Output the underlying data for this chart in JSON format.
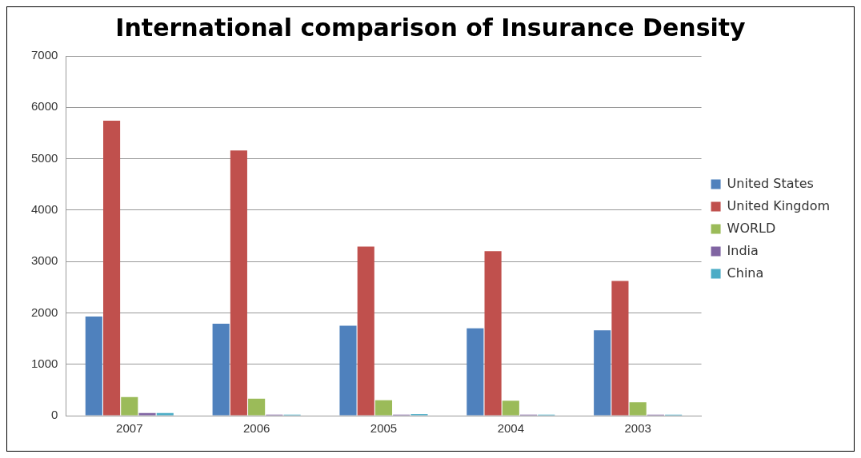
{
  "chart_data": {
    "type": "bar",
    "title": "International comparison of Insurance Density",
    "categories": [
      "2007",
      "2006",
      "2005",
      "2004",
      "2003"
    ],
    "series": [
      {
        "name": "United States",
        "color": "#4f81bd",
        "values": [
          1930,
          1790,
          1750,
          1700,
          1660
        ]
      },
      {
        "name": "United Kingdom",
        "color": "#c0504d",
        "values": [
          5740,
          5160,
          3290,
          3200,
          2620
        ]
      },
      {
        "name": "WORLD",
        "color": "#9bbb59",
        "values": [
          360,
          330,
          300,
          290,
          260
        ]
      },
      {
        "name": "India",
        "color": "#8064a2",
        "values": [
          50,
          20,
          20,
          20,
          20
        ]
      },
      {
        "name": "China",
        "color": "#4bacc6",
        "values": [
          50,
          20,
          30,
          20,
          20
        ]
      }
    ],
    "ylim": [
      0,
      7000
    ],
    "yticks": [
      0,
      1000,
      2000,
      3000,
      4000,
      5000,
      6000,
      7000
    ],
    "grid": "y",
    "legend": "right"
  }
}
